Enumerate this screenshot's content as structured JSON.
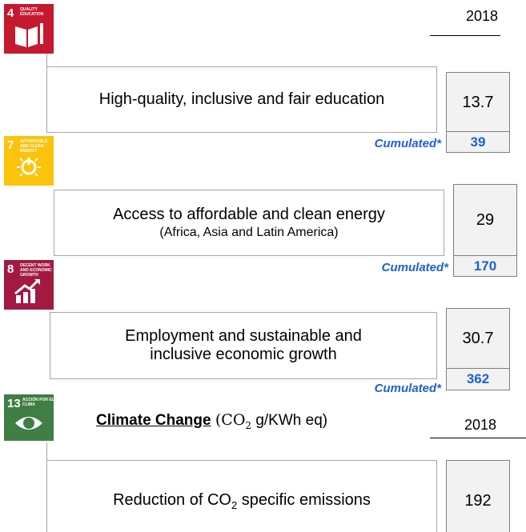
{
  "year": "2018",
  "sections": [
    {
      "icon_number": "4",
      "icon_label": "QUALITY EDUCATION",
      "text": "High-quality, inclusive and fair education",
      "value": "13.7",
      "cumulated_label": "Cumulated*",
      "cumulated": "39"
    },
    {
      "icon_number": "7",
      "icon_label": "AFFORDABLE AND CLEAN ENERGY",
      "text": "Access to affordable and clean energy",
      "subtext": "(Africa, Asia and Latin America)",
      "value": "29",
      "cumulated_label": "Cumulated*",
      "cumulated": "170"
    },
    {
      "icon_number": "8",
      "icon_label": "DECENT WORK AND ECONOMIC GROWTH",
      "text": "Employment and sustainable and inclusive economic growth",
      "value": "30.7",
      "cumulated_label": "Cumulated*",
      "cumulated": "362"
    }
  ],
  "climate": {
    "icon_number": "13",
    "icon_label": "ACCIÓN POR EL CLIMA",
    "title": "Climate Change",
    "unit_prefix": "(CO",
    "unit_sub": "2",
    "unit_suffix": " g/KWh eq)",
    "year": "2018",
    "text_prefix": "Reduction of CO",
    "text_sub": "2",
    "text_suffix": " specific emissions",
    "value": "192"
  }
}
